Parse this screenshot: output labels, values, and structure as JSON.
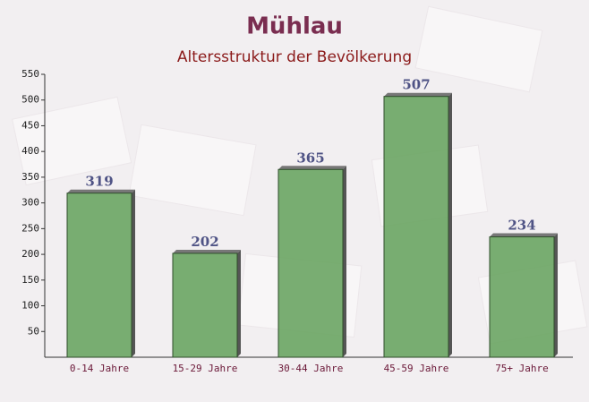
{
  "chart_data": {
    "type": "bar",
    "title": "Mühlau",
    "subtitle": "Altersstruktur der Bevölkerung",
    "categories": [
      "0-14 Jahre",
      "15-29 Jahre",
      "30-44 Jahre",
      "45-59 Jahre",
      "75+ Jahre"
    ],
    "values": [
      319,
      202,
      365,
      507,
      234
    ],
    "color": "#6aa563",
    "ylim": [
      0,
      550
    ],
    "yticks": [
      50,
      100,
      150,
      200,
      250,
      300,
      350,
      400,
      450,
      500,
      550
    ],
    "grid": false
  }
}
